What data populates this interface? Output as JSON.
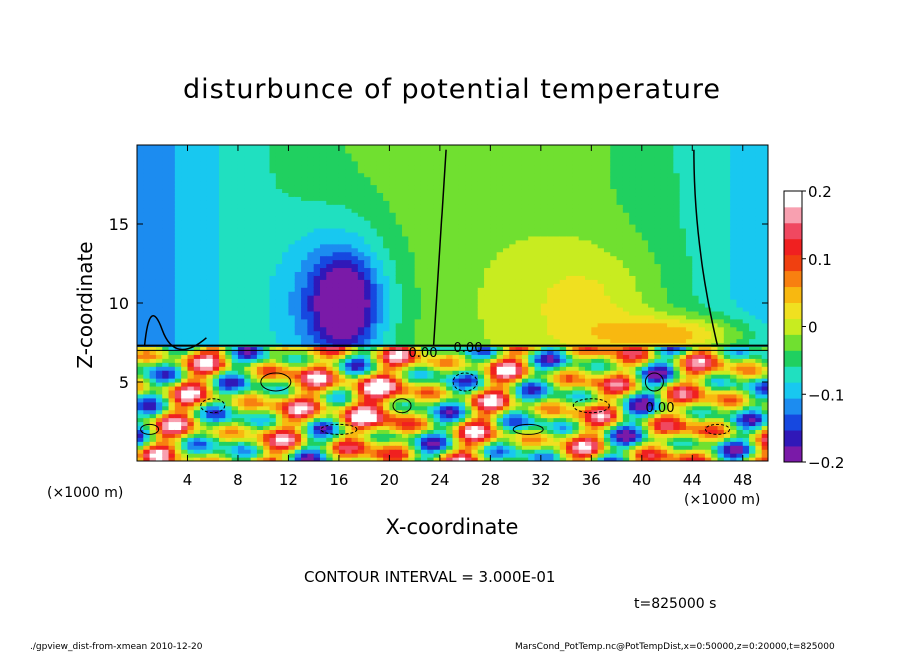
{
  "chart_data": {
    "type": "heatmap",
    "title": "disturbunce of potential temperature",
    "xlabel": "X-coordinate",
    "ylabel": "Z-coordinate",
    "x_unit_label": "(×1000 m)",
    "x_unit_label_right": "(×1000 m)",
    "xlim": [
      0,
      50
    ],
    "ylim": [
      0,
      20
    ],
    "x_ticks": [
      4,
      8,
      12,
      16,
      20,
      24,
      28,
      32,
      36,
      40,
      44,
      48
    ],
    "y_ticks": [
      5,
      10,
      15
    ],
    "colorbar": {
      "range": [
        -0.2,
        0.2
      ],
      "ticks": [
        "0.2",
        "0.1",
        "0",
        "−0.1",
        "−0.2"
      ],
      "tick_values": [
        0.2,
        0.1,
        0,
        -0.1,
        -0.2
      ],
      "colors": [
        "#7a1aa8",
        "#3018b8",
        "#1648e0",
        "#1c8cf0",
        "#18c8f0",
        "#20e0c0",
        "#20d060",
        "#70e030",
        "#c8ec20",
        "#f0e020",
        "#f8b810",
        "#f88010",
        "#f04010",
        "#f02020",
        "#f04860",
        "#f8a0b0",
        "#ffffff"
      ]
    },
    "contour_labels": [
      "0.00",
      "0.00",
      "0.00"
    ],
    "contour_interval": "CONTOUR INTERVAL = 3.000E-01",
    "time_label": "t=825000 s"
  },
  "footer": {
    "left": "./gpview_dist-from-xmean   2010-12-20",
    "right": "MarsCond_PotTemp.nc@PotTempDist,x=0:50000,z=0:20000,t=825000"
  }
}
